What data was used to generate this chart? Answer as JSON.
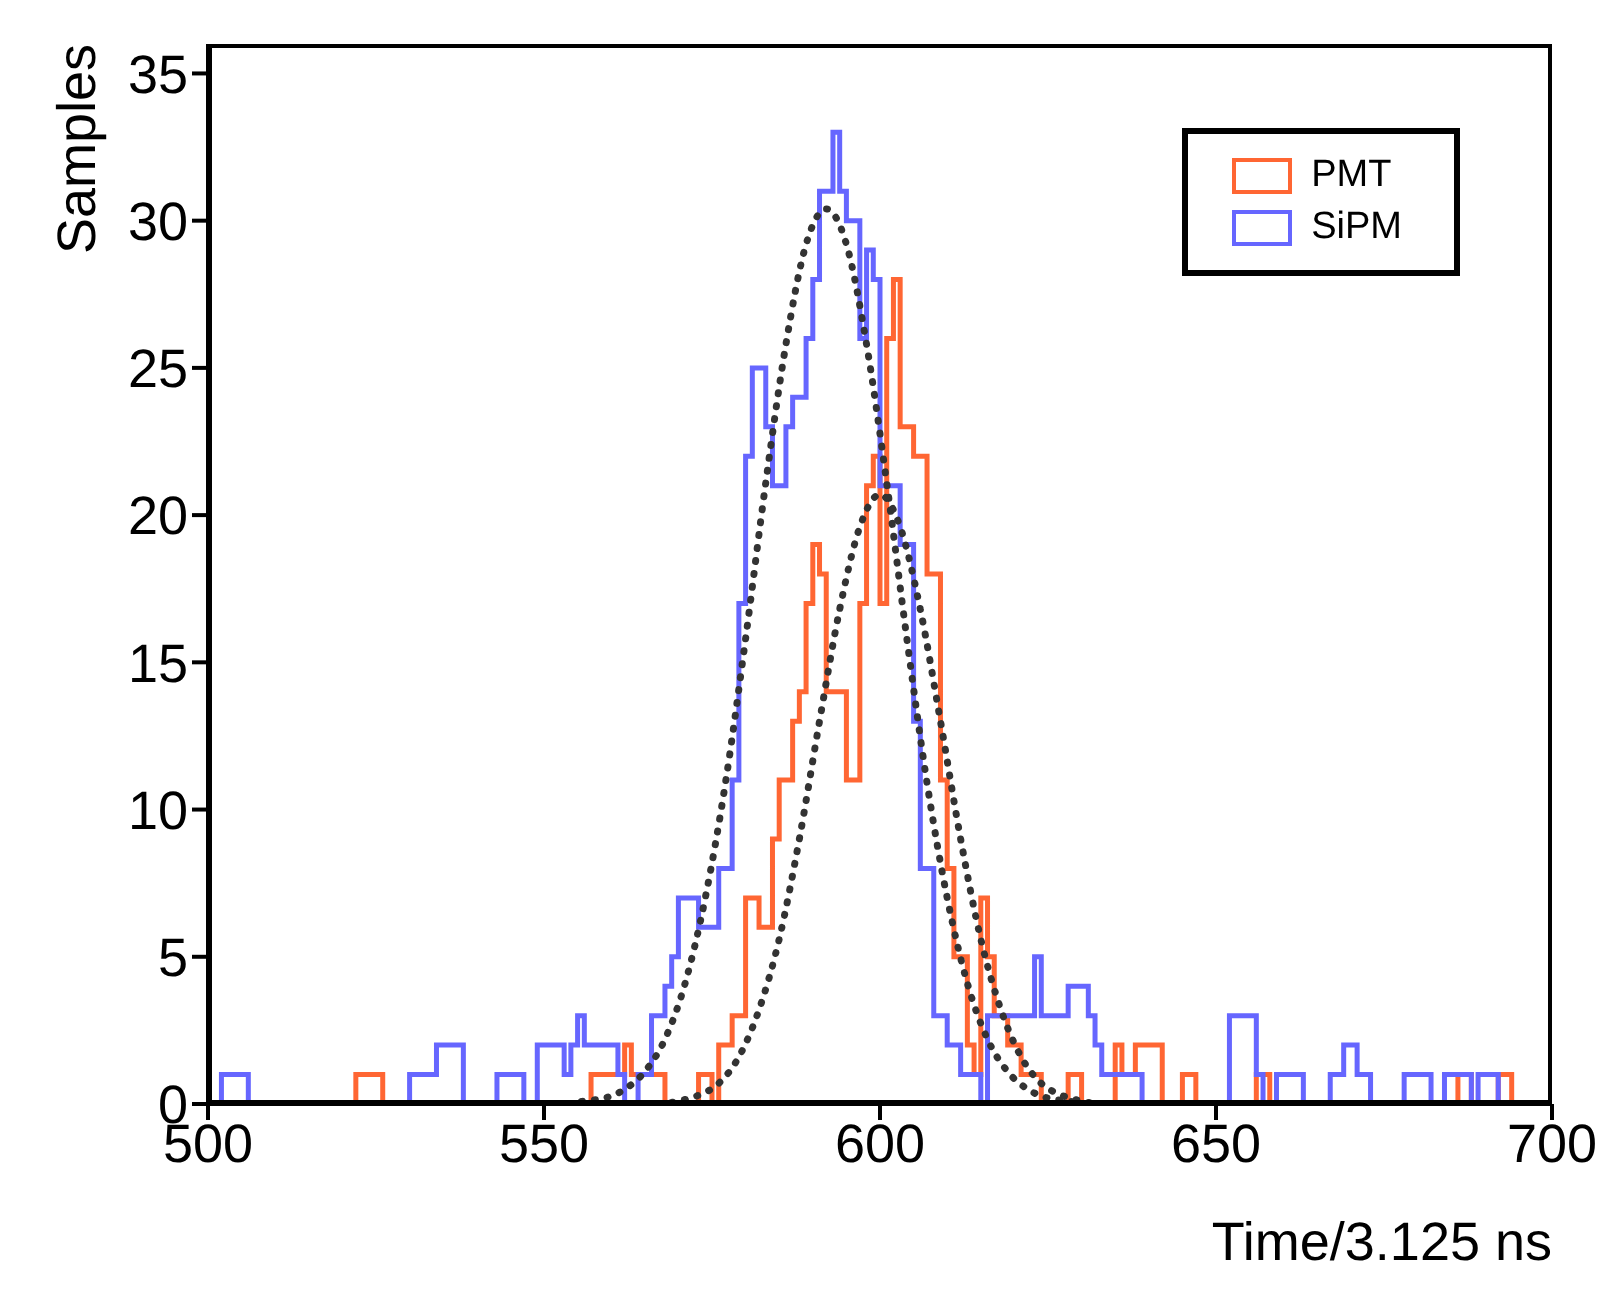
{
  "chart_data": {
    "type": "histogram",
    "xlabel": "Time/3.125 ns",
    "ylabel": "Samples",
    "xlim": [
      500,
      700
    ],
    "xticks": [
      500,
      550,
      600,
      650,
      700
    ],
    "ylim": [
      0,
      36
    ],
    "yticks": [
      0,
      5,
      10,
      15,
      20,
      25,
      30,
      35
    ],
    "legend": "top right",
    "grid": false,
    "bins": [
      500,
      501,
      502,
      503,
      504,
      505,
      506,
      507,
      508,
      509,
      510,
      511,
      512,
      513,
      514,
      515,
      516,
      517,
      518,
      519,
      520,
      521,
      522,
      523,
      524,
      525,
      526,
      527,
      528,
      529,
      530,
      531,
      532,
      533,
      534,
      535,
      536,
      537,
      538,
      539,
      540,
      541,
      542,
      543,
      544,
      545,
      546,
      547,
      548,
      549,
      550,
      551,
      552,
      553,
      554,
      555,
      556,
      557,
      558,
      559,
      560,
      561,
      562,
      563,
      564,
      565,
      566,
      567,
      568,
      569,
      570,
      571,
      572,
      573,
      574,
      575,
      576,
      577,
      578,
      579,
      580,
      581,
      582,
      583,
      584,
      585,
      586,
      587,
      588,
      589,
      590,
      591,
      592,
      593,
      594,
      595,
      596,
      597,
      598,
      599,
      600,
      601,
      602,
      603,
      604,
      605,
      606,
      607,
      608,
      609,
      610,
      611,
      612,
      613,
      614,
      615,
      616,
      617,
      618,
      619,
      620,
      621,
      622,
      623,
      624,
      625,
      626,
      627,
      628,
      629,
      630,
      631,
      632,
      633,
      634,
      635,
      636,
      637,
      638,
      639,
      640,
      641,
      642,
      643,
      644,
      645,
      646,
      647,
      648,
      649,
      650,
      651,
      652,
      653,
      654,
      655,
      656,
      657,
      658,
      659,
      660,
      661,
      662,
      663,
      664,
      665,
      666,
      667,
      668,
      669,
      670,
      671,
      672,
      673,
      674,
      675,
      676,
      677,
      678,
      679,
      680,
      681,
      682,
      683,
      684,
      685,
      686,
      687,
      688,
      689,
      690,
      691,
      692,
      693,
      694,
      695,
      696,
      697,
      698,
      699,
      700
    ],
    "series": [
      {
        "name": "PMT",
        "color": "#ff6633",
        "values": [
          0,
          0,
          0,
          0,
          0,
          0,
          0,
          0,
          0,
          0,
          0,
          0,
          0,
          0,
          0,
          0,
          0,
          0,
          0,
          0,
          0,
          0,
          1,
          1,
          1,
          1,
          0,
          0,
          0,
          0,
          0,
          0,
          0,
          0,
          0,
          0,
          0,
          0,
          0,
          0,
          0,
          0,
          0,
          0,
          0,
          0,
          0,
          0,
          0,
          0,
          0,
          0,
          0,
          0,
          0,
          0,
          0,
          1,
          1,
          1,
          1,
          1,
          2,
          1,
          1,
          1,
          1,
          1,
          0,
          0,
          0,
          0,
          0,
          1,
          1,
          0,
          2,
          2,
          3,
          3,
          7,
          7,
          6,
          6,
          9,
          11,
          11,
          13,
          14,
          17,
          19,
          18,
          14,
          14,
          14,
          11,
          11,
          17,
          21,
          22,
          17,
          26,
          28,
          23,
          23,
          22,
          22,
          18,
          18,
          11,
          8,
          5,
          5,
          2,
          1,
          7,
          5,
          3,
          3,
          2,
          2,
          1,
          1,
          1,
          0,
          0,
          0,
          0,
          1,
          1,
          0,
          0,
          0,
          0,
          0,
          2,
          1,
          1,
          2,
          2,
          2,
          2,
          0,
          0,
          0,
          1,
          1,
          0,
          0,
          0,
          0,
          0,
          0,
          0,
          0,
          0,
          1,
          1,
          0,
          0,
          0,
          0,
          0,
          0,
          0,
          0,
          0,
          0,
          0,
          0,
          0,
          0,
          0,
          0,
          0,
          0,
          0,
          0,
          0,
          0,
          0,
          0,
          0,
          0,
          0,
          0,
          1,
          1,
          0,
          0,
          0,
          0,
          1,
          1,
          0,
          0,
          0,
          0,
          0,
          0
        ]
      },
      {
        "name": "SiPM",
        "color": "#6666ff",
        "values": [
          0,
          0,
          1,
          1,
          1,
          1,
          0,
          0,
          0,
          0,
          0,
          0,
          0,
          0,
          0,
          0,
          0,
          0,
          0,
          0,
          0,
          0,
          0,
          0,
          0,
          0,
          0,
          0,
          0,
          0,
          1,
          1,
          1,
          1,
          2,
          2,
          2,
          2,
          0,
          0,
          0,
          0,
          0,
          1,
          1,
          1,
          1,
          0,
          0,
          2,
          2,
          2,
          2,
          1,
          2,
          3,
          2,
          2,
          2,
          2,
          2,
          1,
          0,
          0,
          1,
          1,
          3,
          3,
          4,
          5,
          7,
          7,
          7,
          6,
          6,
          6,
          8,
          8,
          11,
          17,
          22,
          25,
          25,
          23,
          21,
          21,
          23,
          24,
          24,
          26,
          28,
          31,
          31,
          33,
          31,
          30,
          30,
          26,
          29,
          28,
          21,
          21,
          21,
          19,
          19,
          13,
          8,
          8,
          3,
          3,
          2,
          2,
          1,
          1,
          1,
          0,
          3,
          3,
          3,
          3,
          3,
          3,
          3,
          5,
          3,
          3,
          3,
          3,
          4,
          4,
          4,
          3,
          2,
          1,
          1,
          1,
          1,
          1,
          1,
          0,
          0,
          0,
          0,
          0,
          0,
          0,
          0,
          0,
          0,
          0,
          0,
          0,
          3,
          3,
          3,
          3,
          1,
          0,
          0,
          1,
          1,
          1,
          1,
          0,
          0,
          0,
          0,
          1,
          1,
          2,
          2,
          1,
          1,
          0,
          0,
          0,
          0,
          0,
          1,
          1,
          1,
          1,
          0,
          0,
          1,
          1,
          1,
          1,
          0,
          1,
          1,
          1,
          0,
          0,
          0,
          0,
          0,
          0,
          0,
          0
        ]
      },
      {
        "type": "line",
        "color": "#333333",
        "line_style": "dotted",
        "marker": "none",
        "x": [
          544,
          553,
          556,
          559,
          562,
          565,
          568,
          571,
          574,
          577,
          580,
          583,
          586,
          589,
          592,
          595,
          598,
          601,
          604,
          607,
          610,
          613,
          616,
          619,
          622,
          625,
          628,
          631,
          640
        ],
        "values": [
          0,
          0,
          0.1,
          0.2,
          0.5,
          1.1,
          2.2,
          4.1,
          7.0,
          10.9,
          15.8,
          21.1,
          25.8,
          29.2,
          30.4,
          29.2,
          25.8,
          21.1,
          15.8,
          10.9,
          7.0,
          4.1,
          2.2,
          1.1,
          0.5,
          0.2,
          0.1,
          0,
          0
        ]
      },
      {
        "type": "line",
        "color": "#333333",
        "line_style": "dotted",
        "marker": "none",
        "x": [
          540,
          567,
          570,
          573,
          576,
          579,
          582,
          585,
          588,
          591,
          594,
          597,
          600,
          603,
          606,
          609,
          612,
          615,
          618,
          621,
          624,
          627,
          630,
          633,
          640
        ],
        "values": [
          0,
          0,
          0.1,
          0.3,
          0.7,
          1.6,
          3.2,
          5.6,
          9.0,
          13.0,
          16.8,
          19.6,
          20.7,
          19.6,
          16.8,
          13.0,
          9.0,
          5.6,
          3.2,
          1.6,
          0.7,
          0.3,
          0.1,
          0,
          0
        ]
      }
    ]
  }
}
